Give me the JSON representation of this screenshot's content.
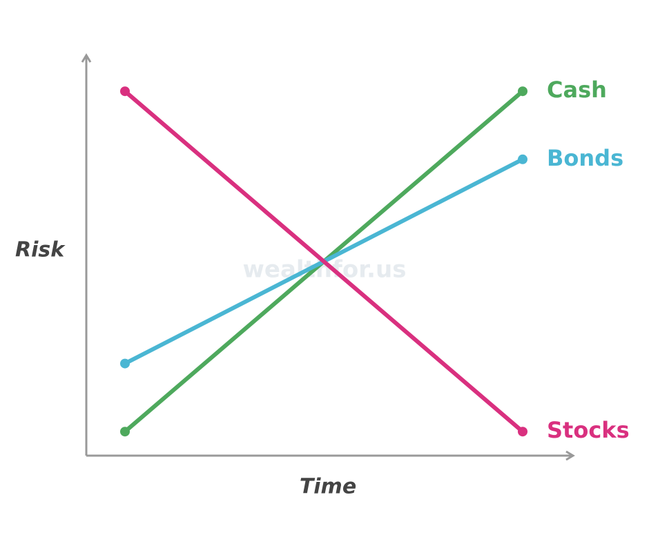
{
  "chart_data": {
    "type": "line",
    "x_label": "Time",
    "y_label": "Risk",
    "watermark": "wealthfor.us",
    "categories": [
      null,
      null
    ],
    "ylim": [
      0,
      100
    ],
    "series": [
      {
        "name": "Cash",
        "color": "#4ea95d",
        "values": [
          6,
          91
        ]
      },
      {
        "name": "Bonds",
        "color": "#4ab6d3",
        "values": [
          23,
          74
        ]
      },
      {
        "name": "Stocks",
        "color": "#d9307f",
        "values": [
          91,
          6
        ]
      }
    ]
  }
}
